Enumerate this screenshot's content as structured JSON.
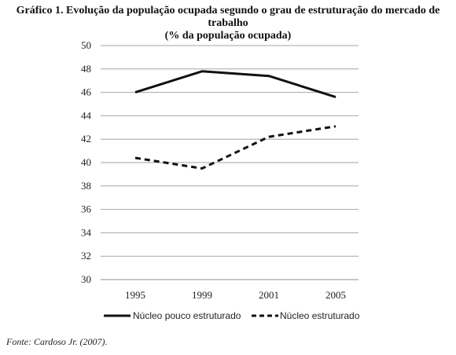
{
  "header": {
    "title_line1": "Gráfico 1. Evolução da população ocupada segundo o grau de estruturação do mercado de trabalho",
    "title_line2": "(% da população ocupada)"
  },
  "source": "Fonte: Cardoso Jr. (2007).",
  "chart_data": {
    "type": "line",
    "title": "Gráfico 1. Evolução da população ocupada segundo o grau de estruturação do mercado de trabalho",
    "subtitle": "(% da população ocupada)",
    "categories": [
      "1995",
      "1999",
      "2001",
      "2005"
    ],
    "ylim": [
      30,
      50
    ],
    "yticks": [
      30,
      32,
      34,
      36,
      38,
      40,
      42,
      44,
      46,
      48,
      50
    ],
    "grid": true,
    "legend_position": "bottom",
    "series": [
      {
        "name": "Núcleo pouco estruturado",
        "values": [
          46.0,
          47.8,
          47.4,
          45.6
        ],
        "dash": "solid",
        "color": "#111111"
      },
      {
        "name": "Núcleo estruturado",
        "values": [
          40.4,
          39.5,
          42.2,
          43.1
        ],
        "dash": "dashed",
        "color": "#111111"
      }
    ]
  }
}
